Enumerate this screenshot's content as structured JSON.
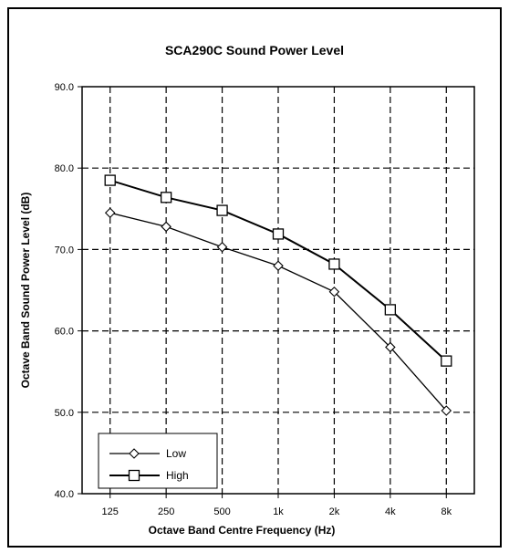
{
  "chart_data": {
    "type": "line",
    "title": "SCA290C Sound Power Level",
    "xlabel": "Octave Band Centre Frequency (Hz)",
    "ylabel": "Octave Band Sound Power Level (dB)",
    "categories": [
      "125",
      "250",
      "500",
      "1k",
      "2k",
      "4k",
      "8k"
    ],
    "ylim": [
      40,
      90
    ],
    "yticks": [
      "40.0",
      "50.0",
      "60.0",
      "70.0",
      "80.0",
      "90.0"
    ],
    "grid": true,
    "legend_position": "bottom-left",
    "series": [
      {
        "name": "Low",
        "marker": "diamond",
        "values": [
          74.5,
          72.8,
          70.3,
          68.0,
          64.8,
          58.0,
          50.2
        ]
      },
      {
        "name": "High",
        "marker": "square",
        "values": [
          78.5,
          76.4,
          74.8,
          71.9,
          68.2,
          62.6,
          56.3
        ]
      }
    ]
  }
}
